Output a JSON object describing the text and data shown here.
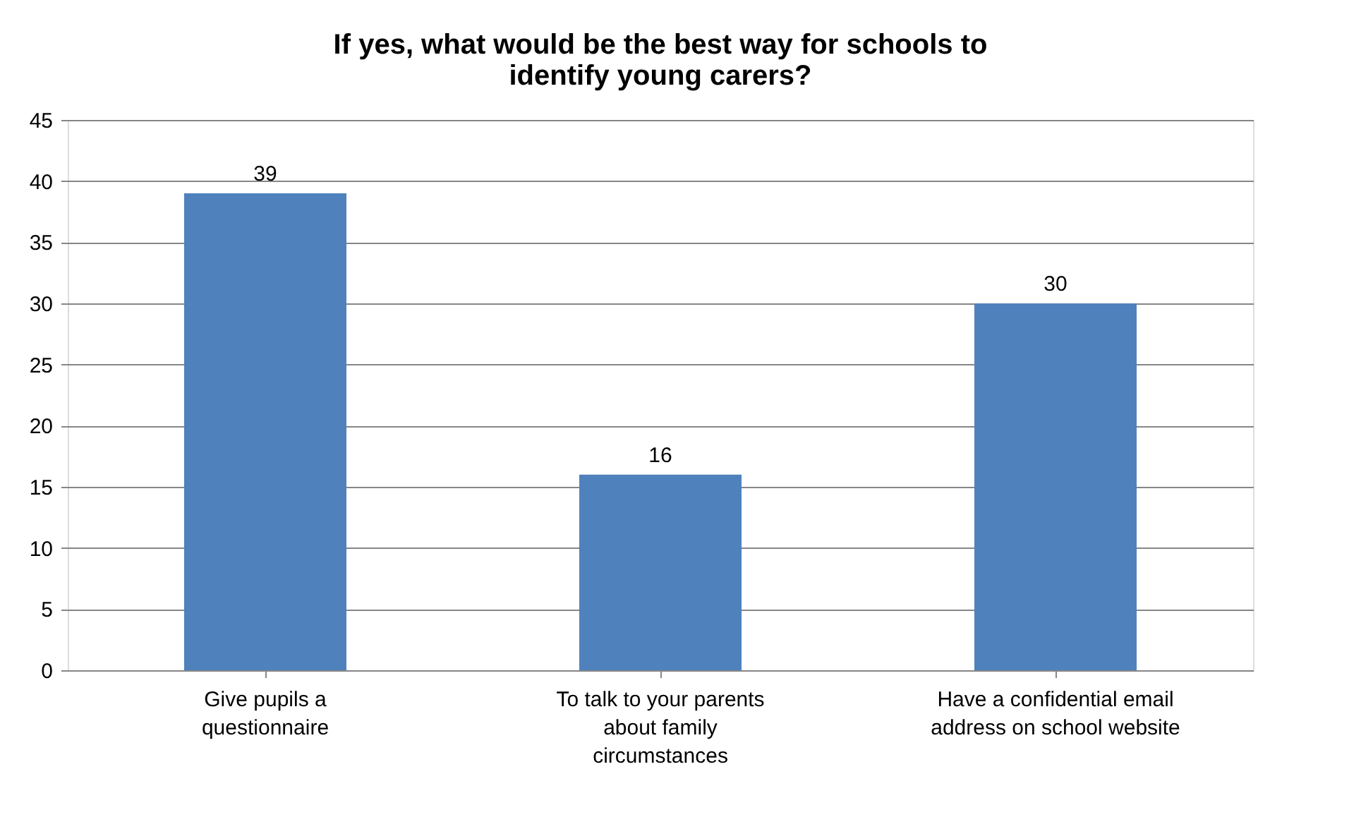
{
  "chart_data": {
    "type": "bar",
    "title": "If yes, what would be the best way for schools to identify young carers?",
    "categories": [
      "Give pupils a questionnaire",
      "To talk to your parents about family circumstances",
      "Have a confidential email address on school website"
    ],
    "values": [
      39,
      16,
      30
    ],
    "color": "#4f81bd",
    "ylim": [
      0,
      45
    ],
    "yticks": [
      0,
      5,
      10,
      15,
      20,
      25,
      30,
      35,
      40,
      45
    ],
    "grid": "y",
    "data_labels": true
  }
}
